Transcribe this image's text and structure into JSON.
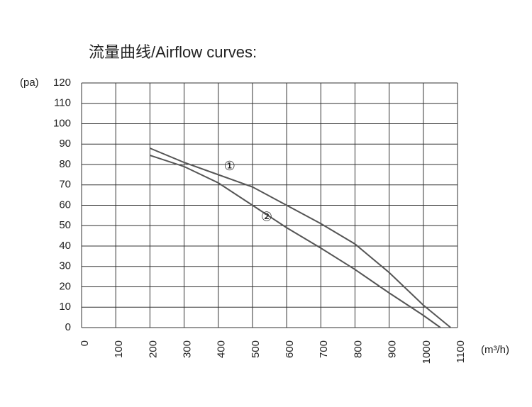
{
  "chart_data": {
    "type": "line",
    "title": "流量曲线/Airflow curves:",
    "x_label": "(m³/h)",
    "y_label": "(pa)",
    "xlim": [
      0,
      1100
    ],
    "xticks": [
      0,
      100,
      200,
      300,
      400,
      500,
      600,
      700,
      800,
      900,
      1000,
      1100
    ],
    "ylim": [
      0,
      120
    ],
    "yticks": [
      0,
      10,
      20,
      30,
      40,
      50,
      60,
      70,
      80,
      90,
      100,
      110,
      120
    ],
    "grid": true,
    "series": [
      {
        "name": "①",
        "color": "#555555",
        "x": [
          200,
          300,
          400,
          500,
          600,
          700,
          800,
          900,
          1000,
          1080
        ],
        "values": [
          88,
          81,
          75,
          69,
          60,
          51,
          41,
          27,
          11,
          0
        ]
      },
      {
        "name": "②",
        "color": "#555555",
        "x": [
          200,
          300,
          400,
          500,
          600,
          700,
          800,
          900,
          1000,
          1050
        ],
        "values": [
          84.5,
          79,
          71,
          60,
          49,
          39,
          28.5,
          17,
          6,
          0
        ]
      }
    ]
  }
}
